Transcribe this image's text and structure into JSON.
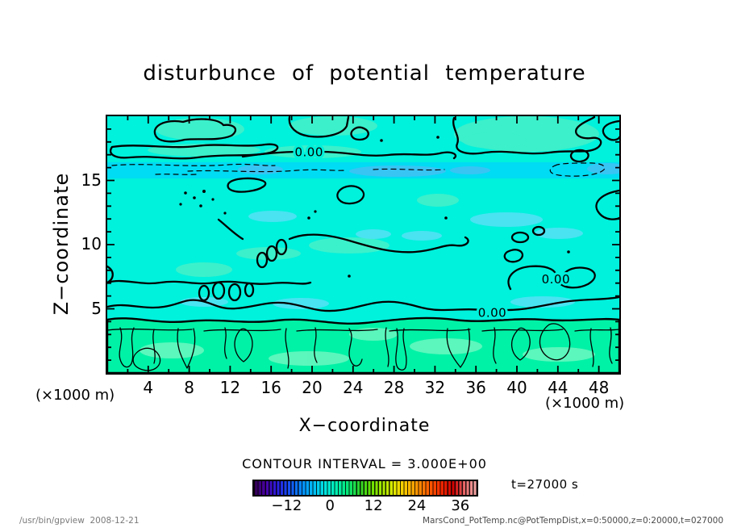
{
  "title": "disturbunce of potential temperature",
  "axes": {
    "x": {
      "label": "X−coordinate",
      "units_label": "(×1000 m)",
      "min": 0,
      "max": 50,
      "major_ticks": [
        4,
        8,
        12,
        16,
        20,
        24,
        28,
        32,
        36,
        40,
        44,
        48
      ],
      "major_step": 4,
      "minor_step": 2
    },
    "y": {
      "label": "Z−coordinate",
      "units_label": "(×1000 m)",
      "min": 0,
      "max": 20,
      "major_ticks": [
        5,
        10,
        15
      ],
      "major_step": 5,
      "minor_step": 1
    }
  },
  "contour_interval_label": "CONTOUR INTERVAL = 3.000E+00",
  "time_label": "t=27000 s",
  "colorbar": {
    "min": -21,
    "max": 40.5,
    "ticks": [
      -12,
      0,
      12,
      24,
      36
    ],
    "cells": 61,
    "colors": [
      "#2E0048",
      "#4A00A8",
      "#2A1EE0",
      "#1550F5",
      "#0687FF",
      "#00B8F5",
      "#00E2E2",
      "#00EEB4",
      "#06E878",
      "#2BD42B",
      "#66E000",
      "#A8EA00",
      "#E2E600",
      "#FFC400",
      "#FF9000",
      "#FF5A00",
      "#F02800",
      "#CF0000",
      "#E86A6A",
      "#F2A8A8"
    ]
  },
  "footer": {
    "left": "/usr/bin/gpview  2008-12-21",
    "right": "MarsCond_PotTemp.nc@PotTempDist,x=0:50000,z=0:20000,t=027000"
  },
  "field_colors": {
    "cyan_base": "#00F1DC",
    "blue_band": "#00DCF3",
    "blue_patch": "#38C5F3",
    "mid_blue_patch": "#52E2F5",
    "green_band": "#00F2A6",
    "green_patch": "#4FF0C6",
    "light_green_patch": "#72F7C2"
  },
  "chart_data": {
    "type": "heatmap",
    "title": "disturbunce of potential temperature",
    "xlabel": "X−coordinate (×1000 m)",
    "ylabel": "Z−coordinate (×1000 m)",
    "xlim": [
      0,
      50
    ],
    "ylim": [
      0,
      20
    ],
    "x_ticks": [
      4,
      8,
      12,
      16,
      20,
      24,
      28,
      32,
      36,
      40,
      44,
      48
    ],
    "y_ticks": [
      5,
      10,
      15
    ],
    "contour_interval": 3.0,
    "contour_labels": [
      {
        "text": "0.00",
        "x": 19.7,
        "z": 17.2
      },
      {
        "text": "0.00",
        "x": 43.8,
        "z": 7.3
      },
      {
        "text": "0.00",
        "x": 37.6,
        "z": 4.7
      }
    ],
    "colorbar_ticks": [
      -12,
      0,
      12,
      24,
      36
    ],
    "colorbar_range": [
      -21,
      40.5
    ],
    "time": "t=27000 s",
    "shading_features": [
      {
        "region": "z > ~16.5 (×1000 m)",
        "appearance": "cyan with green patches inside solid 0.00 contours",
        "value": "≈ 0 to +3"
      },
      {
        "region": "z ≈ 15–16.5",
        "appearance": "light blue horizontal band with dashed (negative) contours",
        "value": "≈ −3"
      },
      {
        "region": "z ≈ 4–15",
        "appearance": "uniform cyan with scattered blue/green patches and wiggly 0.00 contours",
        "value": "≈ −1.5 to +1.5"
      },
      {
        "region": "z < ~4",
        "appearance": "green band with thin vertical finger-like contours",
        "value": "≈ +3 to +6"
      }
    ]
  }
}
